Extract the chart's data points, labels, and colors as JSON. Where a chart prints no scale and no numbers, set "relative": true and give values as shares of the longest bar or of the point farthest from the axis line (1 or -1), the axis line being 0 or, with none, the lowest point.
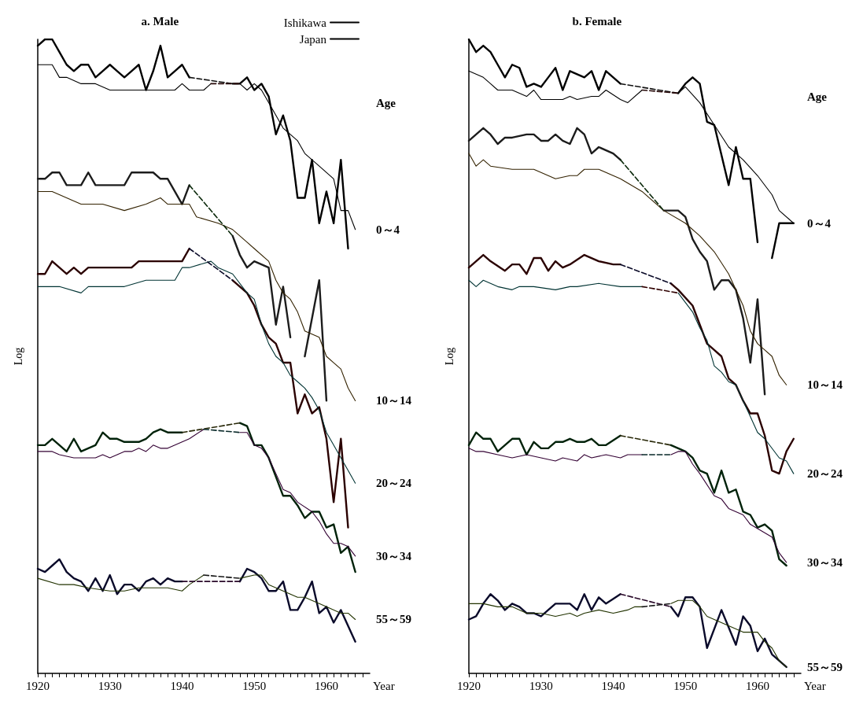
{
  "chart_data": [
    {
      "type": "line",
      "title": "a. Male",
      "xlabel": "Year",
      "ylabel": "Log",
      "relative": true,
      "legend": "top right",
      "xlim": [
        1920,
        1966
      ],
      "xticks": [
        1920,
        {
          "value": 1921,
          "label": null
        },
        {
          "value": 1922,
          "label": null
        },
        {
          "value": 1923,
          "label": null
        },
        {
          "value": 1924,
          "label": null
        },
        {
          "value": 1925,
          "label": null
        },
        {
          "value": 1926,
          "label": null
        },
        {
          "value": 1927,
          "label": null
        },
        {
          "value": 1928,
          "label": null
        },
        {
          "value": 1929,
          "label": null
        },
        1930,
        {
          "value": 1931,
          "label": null
        },
        {
          "value": 1932,
          "label": null
        },
        {
          "value": 1933,
          "label": null
        },
        {
          "value": 1934,
          "label": null
        },
        {
          "value": 1935,
          "label": null
        },
        {
          "value": 1936,
          "label": null
        },
        {
          "value": 1937,
          "label": null
        },
        {
          "value": 1938,
          "label": null
        },
        {
          "value": 1939,
          "label": null
        },
        1940,
        {
          "value": 1941,
          "label": null
        },
        {
          "value": 1942,
          "label": null
        },
        {
          "value": 1943,
          "label": null
        },
        {
          "value": 1944,
          "label": null
        },
        {
          "value": 1945,
          "label": null
        },
        {
          "value": 1946,
          "label": null
        },
        {
          "value": 1947,
          "label": null
        },
        {
          "value": 1948,
          "label": null
        },
        {
          "value": 1949,
          "label": null
        },
        1950,
        {
          "value": 1951,
          "label": null
        },
        {
          "value": 1952,
          "label": null
        },
        {
          "value": 1953,
          "label": null
        },
        {
          "value": 1954,
          "label": null
        },
        {
          "value": 1955,
          "label": null
        },
        {
          "value": 1956,
          "label": null
        },
        {
          "value": 1957,
          "label": null
        },
        {
          "value": 1958,
          "label": null
        },
        {
          "value": 1959,
          "label": null
        },
        1960,
        {
          "value": 1961,
          "label": null
        },
        {
          "value": 1962,
          "label": null
        },
        {
          "value": 1963,
          "label": null
        },
        {
          "value": 1964,
          "label": null
        },
        {
          "value": 1965,
          "label": null
        }
      ],
      "series": [
        {
          "name": "Ishikawa",
          "color": "#000000",
          "x": [
            1920,
            1921,
            1922,
            1923,
            1924,
            1925,
            1926,
            1927,
            1928,
            1929,
            1930,
            1931,
            1932,
            1933,
            1934,
            1935,
            1936,
            1937,
            1938,
            1939,
            1940,
            1941,
            1944,
            1947,
            1948,
            1949,
            1950,
            1951,
            1952,
            1953,
            1954,
            1955,
            1956,
            1957,
            1958,
            1959,
            1960,
            1961,
            1962,
            1963
          ],
          "values": [
            0.99,
            1,
            1,
            0.98,
            0.96,
            0.95,
            0.96,
            0.96,
            0.94,
            0.95,
            0.96,
            0.95,
            0.94,
            0.95,
            0.96,
            0.92,
            0.95,
            0.99,
            0.94,
            0.95,
            0.96,
            0.94,
            null,
            0.93,
            0.93,
            0.94,
            0.92,
            0.93,
            0.91,
            0.85,
            0.88,
            0.84,
            0.75,
            0.75,
            0.81,
            0.71,
            0.76,
            0.71,
            0.81,
            0.67
          ]
        },
        {
          "name": "Japan",
          "color": "#000000",
          "x": [
            1920,
            1922,
            1923,
            1924,
            1926,
            1927,
            1928,
            1930,
            1932,
            1933,
            1934,
            1936,
            1938,
            1939,
            1940,
            1941,
            1943,
            1944,
            1946,
            1948,
            1949,
            1950,
            1951,
            1952,
            1954,
            1956,
            1957,
            1959,
            1961,
            1962,
            1963,
            1964
          ],
          "values": [
            0.96,
            0.96,
            0.94,
            0.94,
            0.93,
            0.93,
            0.93,
            0.92,
            0.92,
            0.92,
            0.92,
            0.92,
            0.92,
            0.92,
            0.93,
            0.92,
            0.92,
            0.93,
            null,
            0.93,
            0.92,
            0.93,
            0.92,
            0.9,
            0.86,
            0.84,
            0.82,
            0.8,
            0.78,
            0.73,
            0.73,
            0.7
          ]
        },
        {
          "color": "#1c1c1c",
          "x": [
            1920,
            1921,
            1922,
            1923,
            1924,
            1925,
            1926,
            1927,
            1928,
            1929,
            1930,
            1931,
            1932,
            1933,
            1934,
            1935,
            1936,
            1937,
            1938,
            1940,
            1941,
            1944,
            1947,
            1948,
            1949,
            1950,
            1952,
            1953,
            1954,
            1955,
            1956,
            1957,
            1959,
            1960
          ],
          "values": [
            0.78,
            0.78,
            0.79,
            0.79,
            0.77,
            0.77,
            0.77,
            0.79,
            0.77,
            0.77,
            0.77,
            0.77,
            0.77,
            0.79,
            0.79,
            0.79,
            0.79,
            0.78,
            0.78,
            0.74,
            0.77,
            null,
            0.69,
            0.66,
            0.64,
            0.65,
            0.64,
            0.55,
            0.61,
            0.53,
            null,
            0.5,
            0.62,
            0.43
          ]
        },
        {
          "color": "#332200",
          "x": [
            1920,
            1922,
            1924,
            1926,
            1927,
            1929,
            1932,
            1935,
            1937,
            1938,
            1940,
            1941,
            1942,
            1945,
            1947,
            1949,
            1950,
            1952,
            1953,
            1954,
            1955,
            1956,
            1957,
            1959,
            1960,
            1961,
            1962,
            1963,
            1964
          ],
          "values": [
            0.76,
            0.76,
            0.75,
            0.74,
            0.74,
            0.74,
            0.73,
            0.74,
            0.75,
            0.74,
            0.74,
            0.74,
            0.72,
            0.71,
            0.7,
            0.68,
            0.67,
            0.65,
            0.62,
            0.6,
            0.59,
            0.57,
            0.54,
            0.53,
            0.5,
            0.49,
            0.48,
            0.45,
            0.43
          ]
        },
        {
          "color": "#2a0000",
          "x": [
            1920,
            1921,
            1922,
            1923,
            1924,
            1925,
            1926,
            1927,
            1928,
            1929,
            1930,
            1931,
            1932,
            1933,
            1934,
            1935,
            1936,
            1937,
            1938,
            1940,
            1941,
            1944,
            1947,
            1949,
            1950,
            1951,
            1952,
            1953,
            1954,
            1955,
            1956,
            1957,
            1958,
            1959,
            1960,
            1961,
            1962,
            1963
          ],
          "values": [
            0.63,
            0.63,
            0.65,
            0.64,
            0.63,
            0.64,
            0.63,
            0.64,
            0.64,
            0.64,
            0.64,
            0.64,
            0.64,
            0.64,
            0.65,
            0.65,
            0.65,
            0.65,
            0.65,
            0.65,
            0.67,
            null,
            0.62,
            0.6,
            0.58,
            0.55,
            0.53,
            0.52,
            0.49,
            0.49,
            0.41,
            0.44,
            0.41,
            0.42,
            0.37,
            0.27,
            0.37,
            0.23
          ]
        },
        {
          "color": "#003333",
          "x": [
            1920,
            1922,
            1923,
            1926,
            1927,
            1930,
            1932,
            1935,
            1939,
            1940,
            1941,
            1944,
            1945,
            1947,
            1949,
            1950,
            1951,
            1952,
            1953,
            1954,
            1955,
            1956,
            1957,
            1958,
            1959,
            1960,
            1961,
            1962,
            1963,
            1964
          ],
          "values": [
            0.61,
            0.61,
            0.61,
            0.6,
            0.61,
            0.61,
            0.61,
            0.62,
            0.62,
            0.64,
            0.64,
            0.65,
            0.64,
            0.63,
            0.6,
            0.59,
            0.55,
            0.52,
            0.5,
            0.49,
            0.47,
            0.46,
            0.45,
            0.435,
            0.415,
            0.38,
            0.36,
            0.34,
            0.32,
            0.3
          ]
        },
        {
          "color": "#00220a",
          "x": [
            1920,
            1921,
            1922,
            1923,
            1924,
            1925,
            1926,
            1927,
            1928,
            1929,
            1930,
            1931,
            1932,
            1933,
            1934,
            1935,
            1936,
            1937,
            1938,
            1940,
            1944,
            1948,
            1949,
            1950,
            1951,
            1952,
            1953,
            1954,
            1955,
            1956,
            1957,
            1958,
            1959,
            1960,
            1961,
            1962,
            1963,
            1964
          ],
          "values": [
            0.36,
            0.36,
            0.37,
            0.36,
            0.35,
            0.37,
            0.35,
            0.355,
            0.36,
            0.38,
            0.37,
            0.37,
            0.365,
            0.365,
            0.365,
            0.37,
            0.38,
            0.385,
            0.38,
            0.38,
            null,
            0.395,
            0.39,
            0.36,
            0.36,
            0.34,
            0.31,
            0.28,
            0.28,
            0.265,
            0.245,
            0.255,
            0.255,
            0.23,
            0.235,
            0.19,
            0.2,
            0.16
          ]
        },
        {
          "color": "#330033",
          "x": [
            1920,
            1921,
            1922,
            1923,
            1925,
            1926,
            1927,
            1928,
            1929,
            1930,
            1931,
            1932,
            1933,
            1934,
            1935,
            1936,
            1937,
            1938,
            1940,
            1941,
            1943,
            1945,
            1948,
            1949,
            1950,
            1951,
            1952,
            1953,
            1954,
            1955,
            1956,
            1958,
            1959,
            1960,
            1961,
            1962,
            1963,
            1964
          ],
          "values": [
            0.35,
            0.35,
            0.35,
            0.345,
            0.34,
            0.34,
            0.34,
            0.34,
            0.345,
            0.34,
            0.345,
            0.35,
            0.35,
            0.355,
            0.35,
            0.36,
            0.355,
            0.355,
            0.365,
            0.37,
            0.385,
            null,
            0.38,
            0.38,
            0.36,
            0.355,
            0.34,
            0.315,
            0.29,
            0.285,
            0.27,
            0.255,
            0.24,
            0.22,
            0.205,
            0.205,
            0.2,
            0.185
          ]
        },
        {
          "color": "#0a0a2a",
          "x": [
            1920,
            1921,
            1922,
            1923,
            1924,
            1925,
            1926,
            1927,
            1928,
            1929,
            1930,
            1931,
            1932,
            1933,
            1934,
            1935,
            1936,
            1937,
            1938,
            1939,
            1940,
            1944,
            1948,
            1949,
            1950,
            1951,
            1952,
            1953,
            1954,
            1955,
            1956,
            1957,
            1958,
            1959,
            1960,
            1961,
            1962,
            1964
          ],
          "values": [
            0.165,
            0.16,
            0.17,
            0.18,
            0.16,
            0.15,
            0.145,
            0.13,
            0.15,
            0.13,
            0.155,
            0.125,
            0.14,
            0.14,
            0.13,
            0.145,
            0.15,
            0.14,
            0.15,
            0.145,
            0.145,
            null,
            0.145,
            0.165,
            0.16,
            0.15,
            0.13,
            0.13,
            0.145,
            0.1,
            0.1,
            0.12,
            0.145,
            0.095,
            0.105,
            0.08,
            0.1,
            0.05
          ]
        },
        {
          "color": "#223300",
          "x": [
            1920,
            1923,
            1925,
            1927,
            1930,
            1932,
            1934,
            1936,
            1938,
            1940,
            1941,
            1943,
            1945,
            1948,
            1950,
            1951,
            1952,
            1953,
            1954,
            1955,
            1956,
            1957,
            1959,
            1960,
            1962,
            1963,
            1964
          ],
          "values": [
            0.15,
            0.14,
            0.14,
            0.135,
            0.13,
            0.13,
            0.135,
            0.135,
            0.135,
            0.13,
            0.14,
            0.155,
            null,
            0.15,
            0.155,
            0.155,
            0.14,
            0.135,
            0.13,
            0.125,
            0.12,
            0.12,
            0.11,
            0.105,
            0.095,
            0.095,
            0.085
          ]
        },
        {
          "color": "#101010",
          "line_style": "dashed",
          "x": [
            1941,
            1947
          ],
          "values": [
            0.94,
            0.93
          ]
        },
        {
          "color": "#280a0a",
          "line_style": "dashed",
          "x": [
            1944,
            1948
          ],
          "values": [
            0.93,
            0.93
          ]
        },
        {
          "color": "#0a280a",
          "line_style": "dashed",
          "x": [
            1941,
            1947
          ],
          "values": [
            0.77,
            0.69
          ]
        },
        {
          "color": "#0a0a28",
          "line_style": "dashed",
          "x": [
            1941,
            1947
          ],
          "values": [
            0.67,
            0.62
          ]
        },
        {
          "color": "#282808",
          "line_style": "dashed",
          "x": [
            1940,
            1948
          ],
          "values": [
            0.38,
            0.395
          ]
        },
        {
          "color": "#082828",
          "line_style": "dashed",
          "x": [
            1943,
            1948
          ],
          "values": [
            0.385,
            0.38
          ]
        },
        {
          "color": "#280828",
          "line_style": "dashed",
          "x": [
            1940,
            1948
          ],
          "values": [
            0.145,
            0.145
          ]
        },
        {
          "color": "#181818",
          "line_style": "dashed",
          "x": [
            1943,
            1948
          ],
          "values": [
            0.155,
            0.15
          ]
        }
      ],
      "annotations": [
        "Age",
        "0～4",
        "10～14",
        "20～24",
        "30～34",
        "55～59"
      ]
    },
    {
      "type": "line",
      "title": "b. Female",
      "xlabel": "Year",
      "ylabel": "Log",
      "relative": true,
      "xlim": [
        1920,
        1966
      ],
      "xticks": [
        1920,
        {
          "value": 1921,
          "label": null
        },
        {
          "value": 1922,
          "label": null
        },
        {
          "value": 1923,
          "label": null
        },
        {
          "value": 1924,
          "label": null
        },
        {
          "value": 1925,
          "label": null
        },
        {
          "value": 1926,
          "label": null
        },
        {
          "value": 1927,
          "label": null
        },
        {
          "value": 1928,
          "label": null
        },
        {
          "value": 1929,
          "label": null
        },
        1930,
        {
          "value": 1931,
          "label": null
        },
        {
          "value": 1932,
          "label": null
        },
        {
          "value": 1933,
          "label": null
        },
        {
          "value": 1934,
          "label": null
        },
        {
          "value": 1935,
          "label": null
        },
        {
          "value": 1936,
          "label": null
        },
        {
          "value": 1937,
          "label": null
        },
        {
          "value": 1938,
          "label": null
        },
        {
          "value": 1939,
          "label": null
        },
        1940,
        {
          "value": 1941,
          "label": null
        },
        {
          "value": 1942,
          "label": null
        },
        {
          "value": 1943,
          "label": null
        },
        {
          "value": 1944,
          "label": null
        },
        {
          "value": 1945,
          "label": null
        },
        {
          "value": 1946,
          "label": null
        },
        {
          "value": 1947,
          "label": null
        },
        {
          "value": 1948,
          "label": null
        },
        {
          "value": 1949,
          "label": null
        },
        1950,
        {
          "value": 1951,
          "label": null
        },
        {
          "value": 1952,
          "label": null
        },
        {
          "value": 1953,
          "label": null
        },
        {
          "value": 1954,
          "label": null
        },
        {
          "value": 1955,
          "label": null
        },
        {
          "value": 1956,
          "label": null
        },
        {
          "value": 1957,
          "label": null
        },
        {
          "value": 1958,
          "label": null
        },
        {
          "value": 1959,
          "label": null
        },
        1960,
        {
          "value": 1961,
          "label": null
        },
        {
          "value": 1962,
          "label": null
        },
        {
          "value": 1963,
          "label": null
        },
        {
          "value": 1964,
          "label": null
        },
        {
          "value": 1965,
          "label": null
        }
      ],
      "series": [
        {
          "color": "#000000",
          "x": [
            1920,
            1921,
            1922,
            1923,
            1924,
            1925,
            1926,
            1927,
            1928,
            1929,
            1930,
            1931,
            1932,
            1933,
            1934,
            1935,
            1936,
            1937,
            1938,
            1939,
            1941,
            1945,
            1949,
            1950,
            1951,
            1952,
            1953,
            1954,
            1956,
            1957,
            1958,
            1959,
            1960,
            1961,
            1962,
            1963,
            1965
          ],
          "values": [
            1,
            0.98,
            0.99,
            0.98,
            0.96,
            0.94,
            0.96,
            0.955,
            0.925,
            0.93,
            0.925,
            0.94,
            0.955,
            0.92,
            0.95,
            0.945,
            0.94,
            0.95,
            0.92,
            0.95,
            0.93,
            null,
            0.915,
            0.93,
            0.94,
            0.93,
            0.87,
            0.865,
            0.77,
            0.83,
            0.78,
            0.78,
            0.68,
            null,
            0.655,
            0.71,
            0.71
          ]
        },
        {
          "color": "#000000",
          "x": [
            1920,
            1922,
            1923,
            1924,
            1926,
            1928,
            1929,
            1930,
            1933,
            1934,
            1935,
            1937,
            1938,
            1939,
            1941,
            1942,
            1944,
            1946,
            1949,
            1950,
            1952,
            1954,
            1956,
            1958,
            1960,
            1962,
            1963,
            1965
          ],
          "values": [
            0.95,
            0.94,
            0.93,
            0.92,
            0.92,
            0.91,
            0.92,
            0.905,
            0.905,
            0.91,
            0.905,
            0.91,
            0.91,
            0.92,
            0.905,
            0.9,
            0.92,
            null,
            0.915,
            0.925,
            0.9,
            0.865,
            0.83,
            0.81,
            0.785,
            0.755,
            0.73,
            0.71
          ]
        },
        {
          "color": "#1c1c1c",
          "x": [
            1920,
            1921,
            1922,
            1923,
            1924,
            1925,
            1926,
            1928,
            1929,
            1930,
            1931,
            1932,
            1933,
            1934,
            1935,
            1936,
            1937,
            1938,
            1940,
            1941,
            1944,
            1947,
            1949,
            1950,
            1951,
            1952,
            1953,
            1954,
            1955,
            1956,
            1957,
            1958,
            1959,
            1960,
            1961
          ],
          "values": [
            0.84,
            0.85,
            0.86,
            0.85,
            0.835,
            0.845,
            0.845,
            0.85,
            0.85,
            0.84,
            0.84,
            0.85,
            0.84,
            0.835,
            0.86,
            0.85,
            0.82,
            0.83,
            0.82,
            0.81,
            null,
            0.73,
            0.73,
            0.72,
            0.685,
            0.665,
            0.65,
            0.605,
            0.62,
            0.62,
            0.605,
            0.56,
            0.49,
            0.59,
            0.44
          ]
        },
        {
          "color": "#332200",
          "x": [
            1920,
            1921,
            1922,
            1923,
            1926,
            1927,
            1929,
            1932,
            1934,
            1935,
            1936,
            1938,
            1941,
            1944,
            1947,
            1950,
            1952,
            1954,
            1956,
            1958,
            1959,
            1960,
            1961,
            1962,
            1963,
            1964
          ],
          "values": [
            0.82,
            0.8,
            0.81,
            0.8,
            0.795,
            0.795,
            0.795,
            0.78,
            0.785,
            0.785,
            0.795,
            0.795,
            0.78,
            0.76,
            0.73,
            0.71,
            0.69,
            0.665,
            0.63,
            0.58,
            0.54,
            0.52,
            0.51,
            0.5,
            0.47,
            0.455
          ]
        },
        {
          "color": "#2a0000",
          "x": [
            1920,
            1921,
            1922,
            1923,
            1925,
            1926,
            1927,
            1928,
            1929,
            1930,
            1931,
            1932,
            1933,
            1934,
            1936,
            1937,
            1938,
            1940,
            1941,
            1945,
            1948,
            1949,
            1951,
            1952,
            1953,
            1954,
            1955,
            1956,
            1957,
            1958,
            1959,
            1960,
            1961,
            1962,
            1963,
            1964,
            1965
          ],
          "values": [
            0.64,
            0.65,
            0.66,
            0.65,
            0.635,
            0.645,
            0.645,
            0.63,
            0.655,
            0.655,
            0.635,
            0.65,
            0.64,
            0.645,
            0.66,
            0.655,
            0.65,
            0.645,
            0.645,
            null,
            0.615,
            0.605,
            0.58,
            0.55,
            0.52,
            0.51,
            0.5,
            0.465,
            0.455,
            0.43,
            0.41,
            0.41,
            0.375,
            0.32,
            0.315,
            0.35,
            0.37
          ]
        },
        {
          "color": "#003333",
          "x": [
            1920,
            1921,
            1922,
            1924,
            1926,
            1927,
            1929,
            1932,
            1934,
            1935,
            1938,
            1941,
            1943,
            1944,
            1946,
            1949,
            1951,
            1952,
            1953,
            1954,
            1955,
            1956,
            1957,
            1958,
            1959,
            1960,
            1961,
            1963,
            1964,
            1965
          ],
          "values": [
            0.62,
            0.61,
            0.62,
            0.61,
            0.605,
            0.61,
            0.61,
            0.605,
            0.61,
            0.61,
            0.615,
            0.61,
            0.61,
            0.61,
            null,
            0.6,
            0.57,
            0.545,
            0.525,
            0.485,
            0.475,
            0.46,
            0.455,
            0.43,
            0.405,
            0.38,
            0.37,
            0.34,
            0.335,
            0.315
          ]
        },
        {
          "color": "#00220a",
          "x": [
            1920,
            1921,
            1922,
            1923,
            1924,
            1925,
            1926,
            1927,
            1928,
            1929,
            1930,
            1931,
            1932,
            1933,
            1934,
            1935,
            1936,
            1937,
            1938,
            1939,
            1941,
            1945,
            1948,
            1949,
            1950,
            1951,
            1952,
            1953,
            1954,
            1955,
            1956,
            1957,
            1958,
            1959,
            1960,
            1961,
            1962,
            1963,
            1964
          ],
          "values": [
            0.36,
            0.38,
            0.37,
            0.37,
            0.35,
            0.36,
            0.37,
            0.37,
            0.345,
            0.365,
            0.355,
            0.355,
            0.365,
            0.365,
            0.37,
            0.365,
            0.365,
            0.37,
            0.36,
            0.36,
            0.375,
            null,
            0.36,
            0.355,
            0.35,
            0.34,
            0.32,
            0.315,
            0.285,
            0.32,
            0.285,
            0.29,
            0.255,
            0.25,
            0.23,
            0.235,
            0.225,
            0.18,
            0.17
          ]
        },
        {
          "color": "#330033",
          "x": [
            1920,
            1921,
            1922,
            1924,
            1926,
            1928,
            1930,
            1932,
            1933,
            1935,
            1936,
            1937,
            1939,
            1941,
            1942,
            1944,
            1946,
            1948,
            1949,
            1950,
            1951,
            1952,
            1954,
            1955,
            1956,
            1958,
            1959,
            1962,
            1963,
            1964
          ],
          "values": [
            0.355,
            0.35,
            0.35,
            0.345,
            0.34,
            0.345,
            0.34,
            0.335,
            0.34,
            0.335,
            0.345,
            0.34,
            0.345,
            0.34,
            0.345,
            0.345,
            null,
            0.345,
            0.35,
            0.35,
            0.33,
            0.315,
            0.28,
            0.275,
            0.26,
            0.25,
            0.235,
            0.215,
            0.19,
            0.175
          ]
        },
        {
          "color": "#0a0a2a",
          "x": [
            1920,
            1921,
            1922,
            1923,
            1924,
            1925,
            1926,
            1927,
            1928,
            1929,
            1930,
            1931,
            1932,
            1933,
            1934,
            1935,
            1936,
            1937,
            1938,
            1939,
            1941,
            1945,
            1948,
            1949,
            1950,
            1951,
            1952,
            1953,
            1955,
            1957,
            1958,
            1959,
            1960,
            1961,
            1962,
            1963,
            1964
          ],
          "values": [
            0.085,
            0.09,
            0.11,
            0.125,
            0.115,
            0.1,
            0.11,
            0.105,
            0.095,
            0.095,
            0.09,
            0.1,
            0.11,
            0.11,
            0.11,
            0.1,
            0.125,
            0.1,
            0.12,
            0.11,
            0.125,
            null,
            0.105,
            0.09,
            0.12,
            0.12,
            0.105,
            0.04,
            0.1,
            0.045,
            0.09,
            0.075,
            0.035,
            0.055,
            0.03,
            0.02,
            0.01
          ]
        },
        {
          "color": "#223300",
          "x": [
            1920,
            1921,
            1922,
            1924,
            1926,
            1928,
            1930,
            1932,
            1934,
            1935,
            1936,
            1938,
            1940,
            1942,
            1943,
            1944,
            1946,
            1948,
            1949,
            1950,
            1951,
            1952,
            1953,
            1955,
            1957,
            1958,
            1960,
            1961,
            1962,
            1963,
            1964
          ],
          "values": [
            0.11,
            0.11,
            0.11,
            0.105,
            0.105,
            0.095,
            0.095,
            0.09,
            0.095,
            0.09,
            0.095,
            0.1,
            0.095,
            0.1,
            0.105,
            0.105,
            null,
            0.11,
            0.115,
            0.115,
            0.115,
            0.105,
            0.09,
            0.08,
            0.07,
            0.065,
            0.065,
            0.05,
            0.04,
            0.02,
            0.01
          ]
        },
        {
          "color": "#101010",
          "line_style": "dashed",
          "x": [
            1941,
            1949
          ],
          "values": [
            0.93,
            0.915
          ]
        },
        {
          "color": "#280a0a",
          "line_style": "dashed",
          "x": [
            1944,
            1949
          ],
          "values": [
            0.92,
            0.915
          ]
        },
        {
          "color": "#0a280a",
          "line_style": "dashed",
          "x": [
            1941,
            1947
          ],
          "values": [
            0.81,
            0.73
          ]
        },
        {
          "color": "#0a0a28",
          "line_style": "dashed",
          "x": [
            1941,
            1948
          ],
          "values": [
            0.645,
            0.615
          ]
        },
        {
          "color": "#300000",
          "line_style": "dashed",
          "x": [
            1944,
            1949
          ],
          "values": [
            0.61,
            0.6
          ]
        },
        {
          "color": "#282808",
          "line_style": "dashed",
          "x": [
            1941,
            1948
          ],
          "values": [
            0.375,
            0.36
          ]
        },
        {
          "color": "#082828",
          "line_style": "dashed",
          "x": [
            1944,
            1948
          ],
          "values": [
            0.345,
            0.345
          ]
        },
        {
          "color": "#280828",
          "line_style": "dashed",
          "x": [
            1941,
            1948
          ],
          "values": [
            0.125,
            0.105
          ]
        },
        {
          "color": "#181818",
          "line_style": "dashed",
          "x": [
            1944,
            1948
          ],
          "values": [
            0.105,
            0.11
          ]
        }
      ],
      "annotations": [
        "Age",
        "0～4",
        "10～14",
        "20～24",
        "30～34",
        "55～59"
      ]
    }
  ]
}
